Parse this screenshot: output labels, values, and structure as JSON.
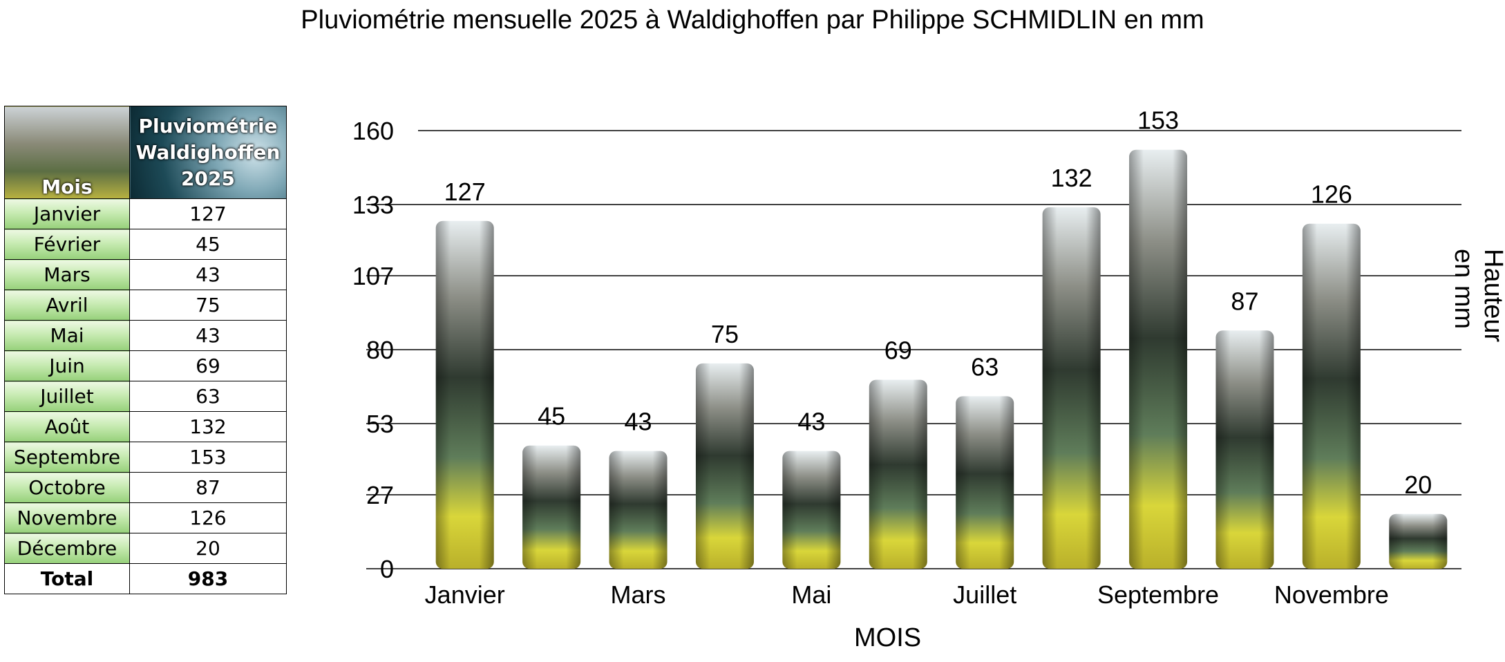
{
  "title": "Pluviométrie mensuelle 2025 à Waldighoffen par Philippe SCHMIDLIN en mm",
  "table": {
    "header_month": "Mois",
    "header_value_lines": [
      "Pluviométrie",
      "Waldighoffen",
      "2025"
    ],
    "rows": [
      {
        "month": "Janvier",
        "value": "127"
      },
      {
        "month": "Février",
        "value": "45"
      },
      {
        "month": "Mars",
        "value": "43"
      },
      {
        "month": "Avril",
        "value": "75"
      },
      {
        "month": "Mai",
        "value": "43"
      },
      {
        "month": "Juin",
        "value": "69"
      },
      {
        "month": "Juillet",
        "value": "63"
      },
      {
        "month": "Août",
        "value": "132"
      },
      {
        "month": "Septembre",
        "value": "153"
      },
      {
        "month": "Octobre",
        "value": "87"
      },
      {
        "month": "Novembre",
        "value": "126"
      },
      {
        "month": "Décembre",
        "value": "20"
      }
    ],
    "total_label": "Total",
    "total_value": "983"
  },
  "chart_data": {
    "type": "bar",
    "categories": [
      "Janvier",
      "Février",
      "Mars",
      "Avril",
      "Mai",
      "Juin",
      "Juillet",
      "Août",
      "Septembre",
      "Octobre",
      "Novembre",
      "Décembre"
    ],
    "values": [
      127,
      45,
      43,
      75,
      43,
      69,
      63,
      132,
      153,
      87,
      126,
      20
    ],
    "x_tick_labels_shown": [
      "Janvier",
      "Mars",
      "Mai",
      "Juillet",
      "Septembre",
      "Novembre"
    ],
    "y_ticks": [
      0,
      27,
      53,
      80,
      107,
      133,
      160
    ],
    "ylim": [
      0,
      160
    ],
    "xlabel": "MOIS",
    "ylabel": "Hauteur en mm",
    "grid": true,
    "data_labels": true,
    "legend": "none"
  },
  "colors": {
    "gridline": "#000000",
    "bar_sky": "#e8eef0",
    "bar_dark": "#2f3a30",
    "bar_mid": "#5f7d5a",
    "bar_yellow": "#d9d63a",
    "month_cell_green": "#b9e3a0"
  }
}
